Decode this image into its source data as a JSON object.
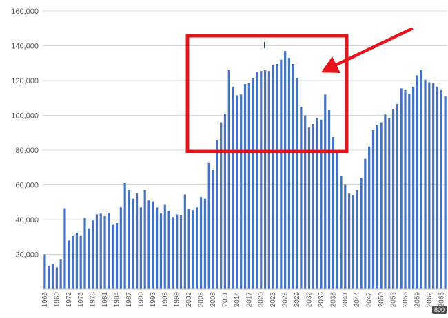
{
  "chart_data": {
    "type": "bar",
    "bar_color": "#4472c4",
    "grid": true,
    "grid_color": "#d9d9d9",
    "ylim": [
      0,
      160000
    ],
    "yticks": [
      20000,
      40000,
      60000,
      80000,
      100000,
      120000,
      140000,
      160000
    ],
    "ytick_labels": [
      "20,000",
      "40,000",
      "60,000",
      "80,000",
      "100,000",
      "120,000",
      "140,000",
      "160,000"
    ],
    "start_year": 1966,
    "end_year": 2066,
    "xtick_labels": [
      "1966",
      "1969",
      "1972",
      "1975",
      "1978",
      "1981",
      "1984",
      "1987",
      "1990",
      "1993",
      "1996",
      "1999",
      "2002",
      "2005",
      "2008",
      "2011",
      "2014",
      "2017",
      "2020",
      "2023",
      "2026",
      "2029",
      "2032",
      "2035",
      "2038",
      "2041",
      "2044",
      "2047",
      "2050",
      "2053",
      "2056",
      "2059",
      "2062",
      "2065"
    ],
    "values": [
      20000,
      13500,
      14500,
      12500,
      17000,
      46500,
      28000,
      30500,
      32500,
      30500,
      41000,
      35000,
      39500,
      43000,
      43500,
      42000,
      44000,
      37000,
      38000,
      47000,
      61000,
      57000,
      52000,
      55000,
      47000,
      57000,
      51000,
      50500,
      47000,
      43500,
      48500,
      45000,
      41500,
      43000,
      42500,
      54500,
      46000,
      45500,
      47000,
      53000,
      52000,
      72500,
      68500,
      85500,
      96000,
      101000,
      126000,
      116500,
      111500,
      112000,
      118000,
      118500,
      121500,
      125000,
      125500,
      126000,
      125500,
      129000,
      129500,
      132000,
      137000,
      133000,
      129500,
      121500,
      105000,
      100000,
      93000,
      95000,
      98500,
      97500,
      112000,
      103000,
      87500,
      80000,
      65000,
      60000,
      55000,
      54000,
      57000,
      64000,
      75000,
      82000,
      91500,
      94500,
      96000,
      100500,
      98500,
      103500,
      106500,
      115500,
      114500,
      112500,
      116500,
      123000,
      126000,
      120500,
      119000,
      118500,
      116500,
      114500,
      111000
    ]
  },
  "annotations": {
    "highlight_box_color": "#e8141b",
    "arrow_color": "#e8141b"
  },
  "badge": {
    "text": "800"
  }
}
